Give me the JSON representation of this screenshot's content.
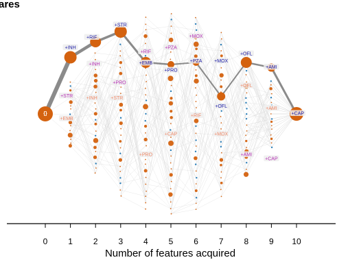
{
  "title_fragment": "ares",
  "chart_data": {
    "type": "network",
    "xlabel": "Number of features acquired",
    "xticks": [
      0,
      1,
      2,
      3,
      4,
      5,
      6,
      7,
      8,
      9,
      10
    ],
    "colors": {
      "orange": "#d4620f",
      "blue": "#1f77b4",
      "main_edge": "#777777",
      "faint_edge": "#dddddd",
      "label_strong": "#1a1aa6",
      "label_mid": "#b52fb5",
      "label_faint": "#f08b6a"
    },
    "main_path": [
      {
        "x": 0,
        "y": 0.0,
        "size": 11
      },
      {
        "x": 1,
        "y": -0.55,
        "size": 9
      },
      {
        "x": 2,
        "y": -0.7,
        "size": 8
      },
      {
        "x": 3,
        "y": -0.8,
        "size": 9
      },
      {
        "x": 4,
        "y": -0.5,
        "size": 8
      },
      {
        "x": 5,
        "y": -0.48,
        "size": 5
      },
      {
        "x": 6,
        "y": -0.5,
        "size": 5
      },
      {
        "x": 7,
        "y": -0.17,
        "size": 6
      },
      {
        "x": 8,
        "y": -0.5,
        "size": 8
      },
      {
        "x": 9,
        "y": -0.45,
        "size": 6
      },
      {
        "x": 10,
        "y": 0.0,
        "size": 10
      }
    ],
    "labels": [
      {
        "text": "{}",
        "x": 0,
        "y": 0.0,
        "style": "node"
      },
      {
        "text": "+INH",
        "x": 1,
        "y": -0.64,
        "style": "strong"
      },
      {
        "text": "+EMB",
        "x": 0.85,
        "y": 0.05,
        "style": "faint"
      },
      {
        "text": "+STR",
        "x": 0.85,
        "y": -0.17,
        "style": "mid"
      },
      {
        "text": "+RIF",
        "x": 1.85,
        "y": -0.74,
        "style": "strong"
      },
      {
        "text": "+INH",
        "x": 1.95,
        "y": -0.48,
        "style": "mid"
      },
      {
        "text": "+INH",
        "x": 1.85,
        "y": -0.15,
        "style": "faint"
      },
      {
        "text": "+STR",
        "x": 3.0,
        "y": -0.86,
        "style": "strong"
      },
      {
        "text": "+PRO",
        "x": 2.95,
        "y": -0.3,
        "style": "mid"
      },
      {
        "text": "+STR",
        "x": 2.85,
        "y": -0.15,
        "style": "faint"
      },
      {
        "text": "+RIF",
        "x": 4.0,
        "y": -0.6,
        "style": "mid"
      },
      {
        "text": "+EMB",
        "x": 4.0,
        "y": -0.49,
        "style": "strong"
      },
      {
        "text": "+PRO",
        "x": 4.0,
        "y": 0.4,
        "style": "faint"
      },
      {
        "text": "+PZA",
        "x": 5.0,
        "y": -0.64,
        "style": "mid"
      },
      {
        "text": "+PRO",
        "x": 5.0,
        "y": -0.42,
        "style": "strong"
      },
      {
        "text": "+CAP",
        "x": 5.0,
        "y": 0.2,
        "style": "faint"
      },
      {
        "text": "+MOX",
        "x": 6.0,
        "y": -0.75,
        "style": "mid"
      },
      {
        "text": "+PZA",
        "x": 6.0,
        "y": -0.51,
        "style": "strong"
      },
      {
        "text": "+RIF",
        "x": 6.0,
        "y": 0.02,
        "style": "faint"
      },
      {
        "text": "+MOX",
        "x": 7.0,
        "y": -0.51,
        "style": "strong"
      },
      {
        "text": "+OFL",
        "x": 7.0,
        "y": -0.07,
        "style": "strong"
      },
      {
        "text": "+MOX",
        "x": 7.0,
        "y": 0.2,
        "style": "faint"
      },
      {
        "text": "+OFL",
        "x": 8.0,
        "y": -0.58,
        "style": "strong"
      },
      {
        "text": "+OFL",
        "x": 8.0,
        "y": -0.27,
        "style": "faint"
      },
      {
        "text": "+AMI",
        "x": 8.0,
        "y": 0.4,
        "style": "mid"
      },
      {
        "text": "+AMI",
        "x": 9.0,
        "y": -0.45,
        "style": "strong"
      },
      {
        "text": "+AMI",
        "x": 9.0,
        "y": -0.05,
        "style": "faint"
      },
      {
        "text": "+CAP",
        "x": 9.0,
        "y": 0.44,
        "style": "mid"
      },
      {
        "text": "+CAP",
        "x": 10.05,
        "y": 0.0,
        "style": "strong"
      }
    ]
  }
}
